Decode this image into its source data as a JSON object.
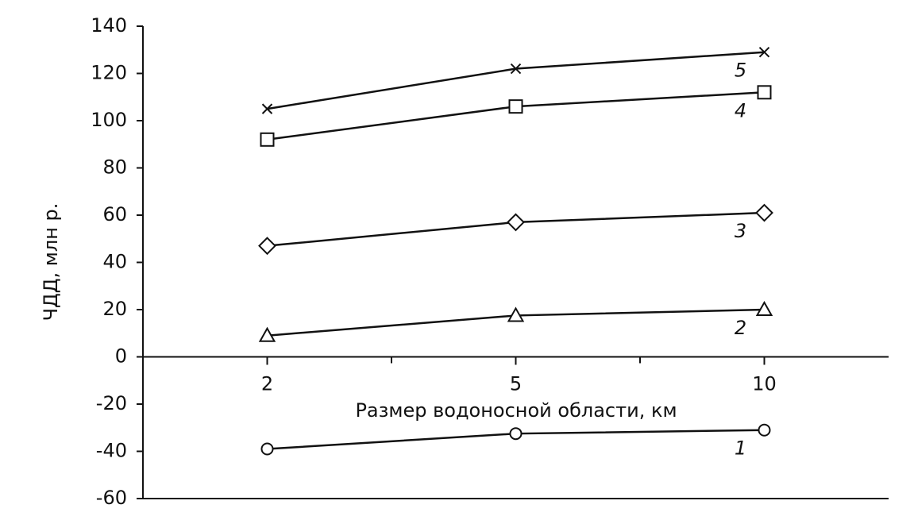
{
  "chart_data": {
    "type": "line",
    "x_label": "Размер водоносной области, км",
    "y_label": "ЧДД, млн р.",
    "categories": [
      "2",
      "5",
      "10"
    ],
    "series": [
      {
        "name": "1",
        "color": "#111111",
        "marker": "circle",
        "values": [
          -39,
          -32.5,
          -31
        ]
      },
      {
        "name": "2",
        "color": "#111111",
        "marker": "triangle",
        "values": [
          9,
          17.5,
          20
        ]
      },
      {
        "name": "3",
        "color": "#111111",
        "marker": "diamond",
        "values": [
          47,
          57,
          61
        ]
      },
      {
        "name": "4",
        "color": "#111111",
        "marker": "square",
        "values": [
          92,
          106,
          112
        ]
      },
      {
        "name": "5",
        "color": "#111111",
        "marker": "cross",
        "values": [
          105,
          122,
          129
        ]
      }
    ],
    "ylim": [
      -60,
      140
    ],
    "yticks": [
      -60,
      -40,
      -20,
      0,
      20,
      40,
      60,
      80,
      100,
      120,
      140
    ],
    "grid": false
  }
}
